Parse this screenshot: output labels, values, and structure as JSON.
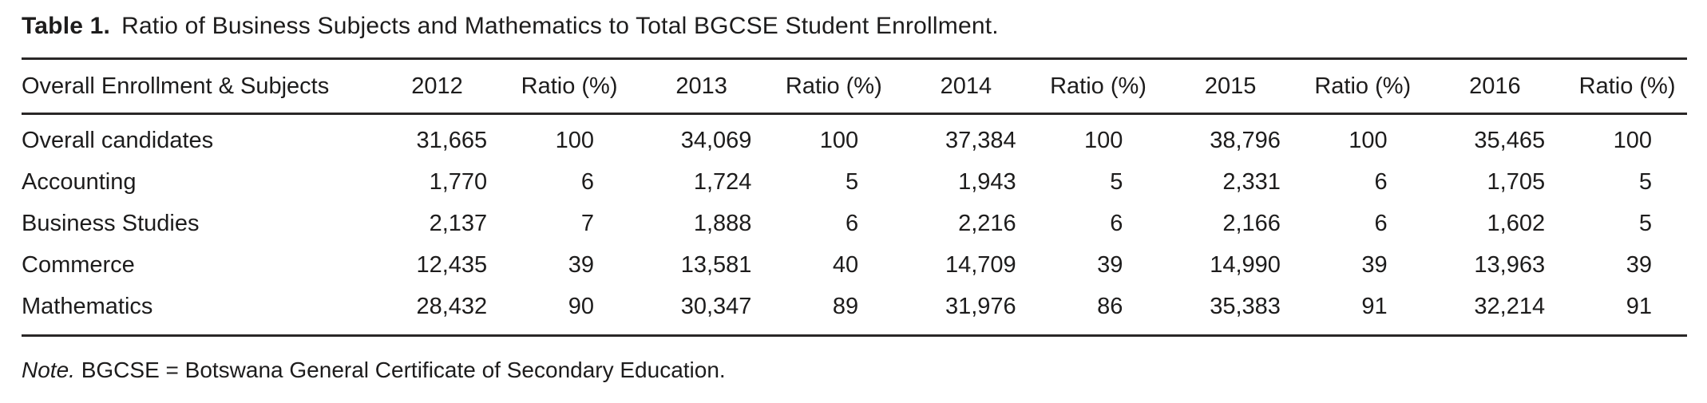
{
  "title": {
    "label": "Table 1.",
    "text": "Ratio of Business Subjects and Mathematics to Total BGCSE Student Enrollment."
  },
  "table": {
    "columns": [
      "Overall Enrollment & Subjects",
      "2012",
      "Ratio (%)",
      "2013",
      "Ratio (%)",
      "2014",
      "Ratio (%)",
      "2015",
      "Ratio (%)",
      "2016",
      "Ratio (%)"
    ],
    "rows": [
      {
        "label": "Overall candidates",
        "values": [
          "31,665",
          "100",
          "34,069",
          "100",
          "37,384",
          "100",
          "38,796",
          "100",
          "35,465",
          "100"
        ]
      },
      {
        "label": "Accounting",
        "values": [
          "1,770",
          "6",
          "1,724",
          "5",
          "1,943",
          "5",
          "2,331",
          "6",
          "1,705",
          "5"
        ]
      },
      {
        "label": "Business Studies",
        "values": [
          "2,137",
          "7",
          "1,888",
          "6",
          "2,216",
          "6",
          "2,166",
          "6",
          "1,602",
          "5"
        ]
      },
      {
        "label": "Commerce",
        "values": [
          "12,435",
          "39",
          "13,581",
          "40",
          "14,709",
          "39",
          "14,990",
          "39",
          "13,963",
          "39"
        ]
      },
      {
        "label": "Mathematics",
        "values": [
          "28,432",
          "90",
          "30,347",
          "89",
          "31,976",
          "86",
          "35,383",
          "91",
          "32,214",
          "91"
        ]
      }
    ]
  },
  "note": {
    "label": "Note.",
    "text": "BGCSE = Botswana General Certificate of Secondary Education."
  },
  "colors": {
    "text": "#1d1c1c",
    "rule": "#2a2727",
    "background": "#ffffff"
  }
}
